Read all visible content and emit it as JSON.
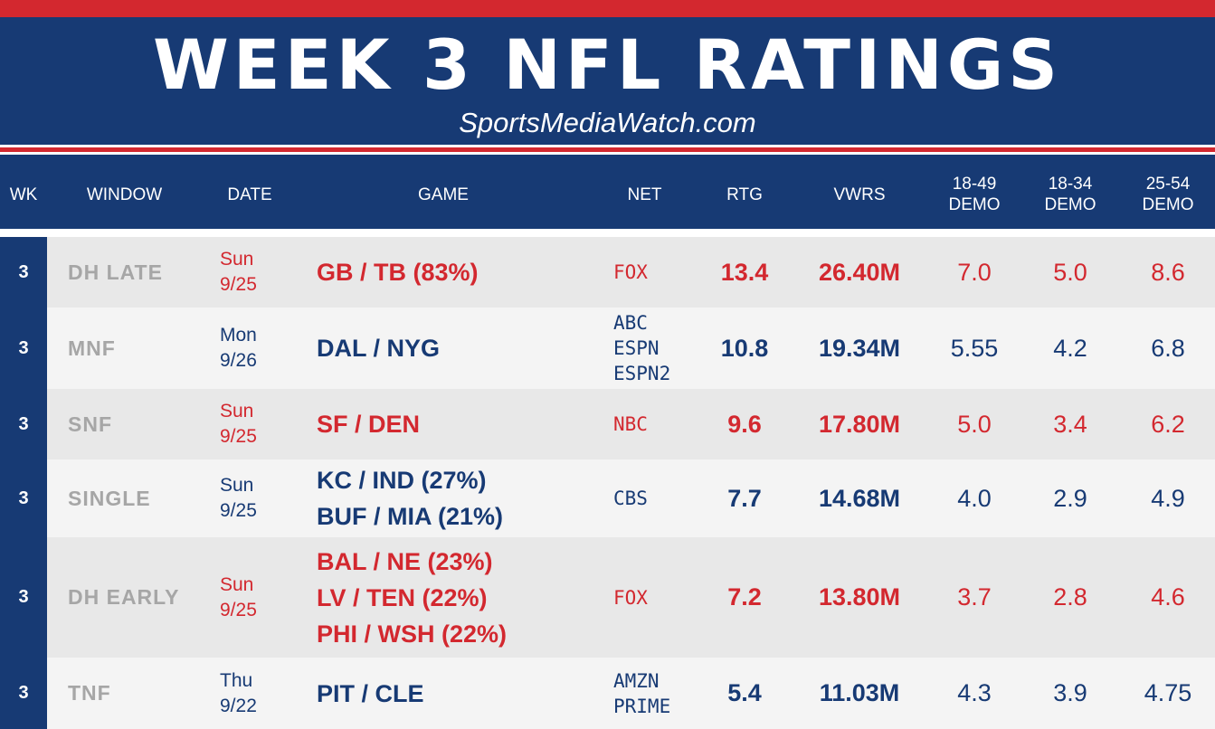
{
  "title": "WEEK 3 NFL RATINGS",
  "source": "SportsMediaWatch.com",
  "colors": {
    "navy": "#173a74",
    "red": "#d3282f",
    "window_gray": "#a6a6a6"
  },
  "headers": {
    "wk": "WK",
    "window": "WINDOW",
    "date": "DATE",
    "game": "GAME",
    "net": "NET",
    "rtg": "RTG",
    "vwrs": "VWRS",
    "demo_1849": "18-49\nDEMO",
    "demo_1834": "18-34\nDEMO",
    "demo_2554": "25-54\nDEMO"
  },
  "rows": [
    {
      "wk": "3",
      "window": "DH LATE",
      "date": "Sun\n9/25",
      "games": [
        "GB / TB (83%)"
      ],
      "net": [
        "FOX"
      ],
      "rtg": "13.4",
      "vwrs": "26.40M",
      "demo_1849": "7.0",
      "demo_1834": "5.0",
      "demo_2554": "8.6",
      "color": "red"
    },
    {
      "wk": "3",
      "window": "MNF",
      "date": "Mon\n9/26",
      "games": [
        "DAL / NYG"
      ],
      "net": [
        "ABC",
        "ESPN",
        "ESPN2"
      ],
      "rtg": "10.8",
      "vwrs": "19.34M",
      "demo_1849": "5.55",
      "demo_1834": "4.2",
      "demo_2554": "6.8",
      "color": "blue"
    },
    {
      "wk": "3",
      "window": "SNF",
      "date": "Sun\n9/25",
      "games": [
        "SF / DEN"
      ],
      "net": [
        "NBC"
      ],
      "rtg": "9.6",
      "vwrs": "17.80M",
      "demo_1849": "5.0",
      "demo_1834": "3.4",
      "demo_2554": "6.2",
      "color": "red"
    },
    {
      "wk": "3",
      "window": "SINGLE",
      "date": "Sun\n9/25",
      "games": [
        "KC / IND (27%)",
        "BUF / MIA (21%)"
      ],
      "net": [
        "CBS"
      ],
      "rtg": "7.7",
      "vwrs": "14.68M",
      "demo_1849": "4.0",
      "demo_1834": "2.9",
      "demo_2554": "4.9",
      "color": "blue"
    },
    {
      "wk": "3",
      "window": "DH EARLY",
      "date": "Sun\n9/25",
      "games": [
        "BAL / NE (23%)",
        "LV / TEN (22%)",
        "PHI / WSH (22%)"
      ],
      "net": [
        "FOX"
      ],
      "rtg": "7.2",
      "vwrs": "13.80M",
      "demo_1849": "3.7",
      "demo_1834": "2.8",
      "demo_2554": "4.6",
      "color": "red"
    },
    {
      "wk": "3",
      "window": "TNF",
      "date": "Thu\n9/22",
      "games": [
        "PIT / CLE"
      ],
      "net": [
        "AMZN",
        "PRIME"
      ],
      "rtg": "5.4",
      "vwrs": "11.03M",
      "demo_1849": "4.3",
      "demo_1834": "3.9",
      "demo_2554": "4.75",
      "color": "blue"
    }
  ]
}
